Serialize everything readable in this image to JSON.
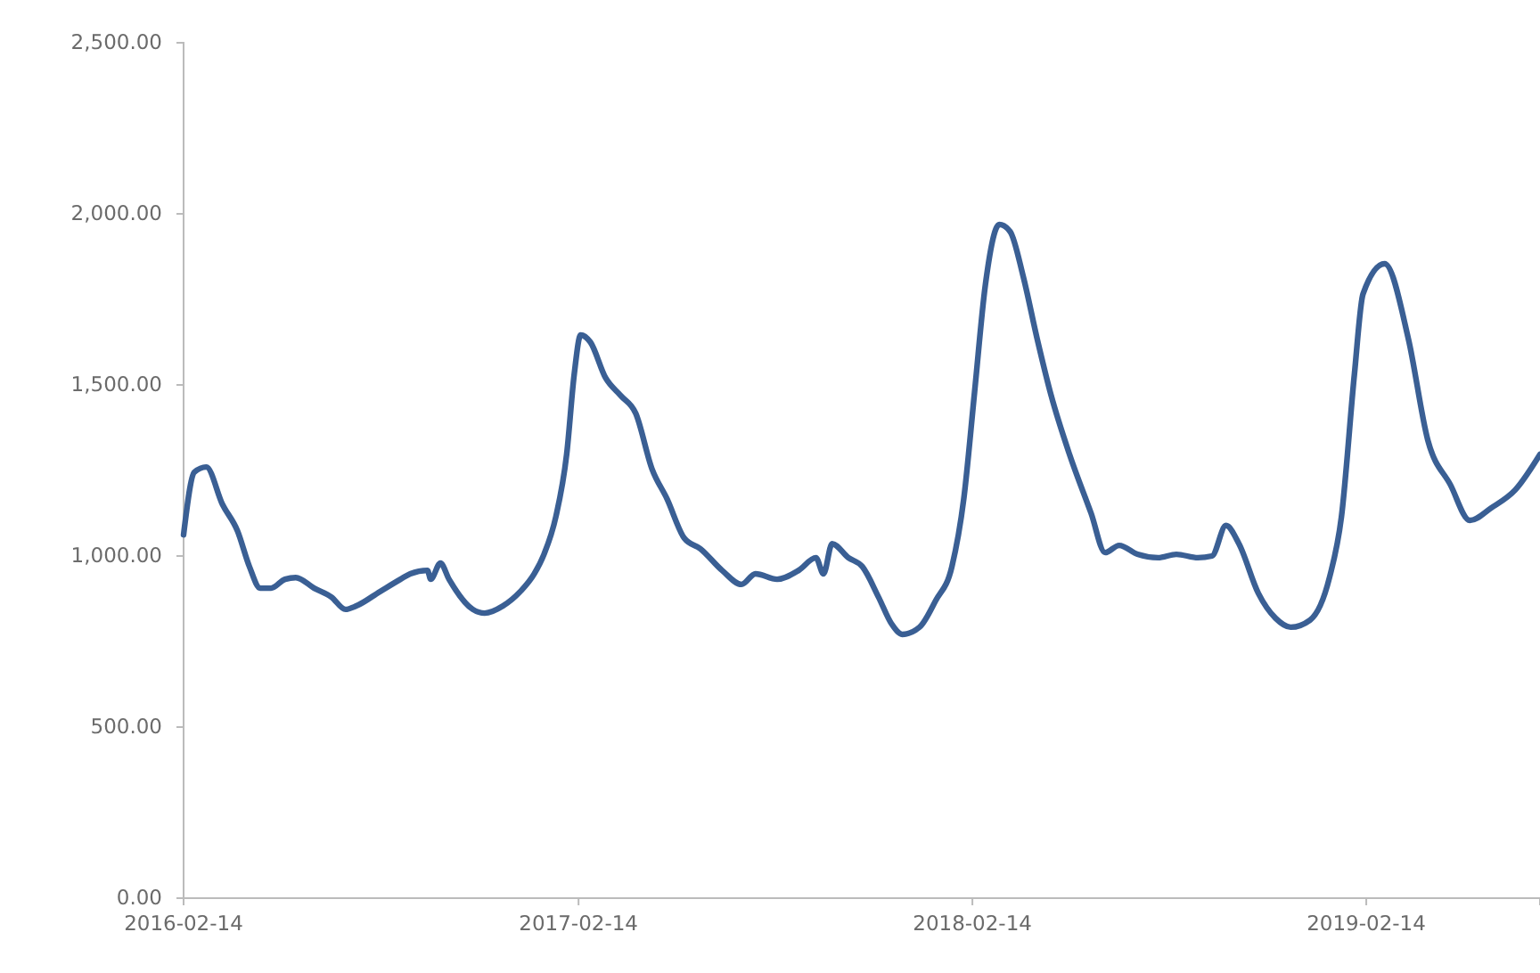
{
  "chart_data": {
    "type": "line",
    "x": [
      "2016-02-14",
      "2016-02-24",
      "2016-03-06",
      "2016-03-21",
      "2016-04-04",
      "2016-04-15",
      "2016-04-25",
      "2016-05-05",
      "2016-05-18",
      "2016-05-28",
      "2016-06-14",
      "2016-06-30",
      "2016-07-13",
      "2016-07-23",
      "2016-08-14",
      "2016-09-02",
      "2016-09-11",
      "2016-09-27",
      "2016-09-30",
      "2016-10-09",
      "2016-10-17",
      "2016-11-08",
      "2016-11-19",
      "2016-12-06",
      "2016-12-22",
      "2017-01-04",
      "2017-01-13",
      "2017-01-24",
      "2017-02-03",
      "2017-02-10",
      "2017-02-16",
      "2017-02-25",
      "2017-03-11",
      "2017-03-25",
      "2017-04-08",
      "2017-04-23",
      "2017-05-07",
      "2017-05-23",
      "2017-06-07",
      "2017-06-27",
      "2017-07-15",
      "2017-07-28",
      "2017-08-17",
      "2017-09-06",
      "2017-09-22",
      "2017-09-29",
      "2017-10-07",
      "2017-10-22",
      "2017-11-04",
      "2017-11-19",
      "2017-12-01",
      "2017-12-11",
      "2017-12-27",
      "2018-01-11",
      "2018-01-26",
      "2018-02-06",
      "2018-02-16",
      "2018-02-26",
      "2018-03-11",
      "2018-03-21",
      "2018-04-02",
      "2018-04-15",
      "2018-04-28",
      "2018-05-15",
      "2018-06-04",
      "2018-06-17",
      "2018-06-30",
      "2018-07-17",
      "2018-08-05",
      "2018-08-22",
      "2018-09-11",
      "2018-09-24",
      "2018-10-07",
      "2018-10-19",
      "2018-11-06",
      "2018-11-22",
      "2018-12-06",
      "2018-12-24",
      "2019-01-11",
      "2019-01-22",
      "2019-02-03",
      "2019-02-11",
      "2019-03-03",
      "2019-03-25",
      "2019-04-12",
      "2019-05-03",
      "2019-05-21",
      "2019-06-10",
      "2019-07-02",
      "2019-07-25"
    ],
    "series": [
      {
        "color": "#3a5f94",
        "values": [
          1062,
          1245,
          1260,
          1151,
          1073,
          969,
          906,
          906,
          932,
          937,
          906,
          880,
          844,
          854,
          896,
          932,
          948,
          958,
          932,
          979,
          932,
          844,
          833,
          854,
          896,
          948,
          1005,
          1115,
          1297,
          1531,
          1646,
          1625,
          1521,
          1469,
          1417,
          1255,
          1167,
          1052,
          1021,
          958,
          917,
          948,
          932,
          958,
          995,
          948,
          1036,
          995,
          969,
          880,
          802,
          771,
          792,
          870,
          969,
          1167,
          1479,
          1792,
          1969,
          1948,
          1818,
          1635,
          1469,
          1297,
          1125,
          1010,
          1031,
          1005,
          995,
          1005,
          995,
          1000,
          1089,
          1036,
          891,
          818,
          792,
          813,
          938,
          1115,
          1531,
          1766,
          1854,
          1635,
          1339,
          1208,
          1104,
          1141,
          1193,
          1297
        ]
      }
    ],
    "xlim": [
      "2016-02-14",
      "2019-07-25"
    ],
    "xticks": [
      "2016-02-14",
      "2017-02-14",
      "2018-02-14",
      "2019-02-14"
    ],
    "ylim": [
      0,
      2500
    ],
    "yticks": [
      {
        "value": 0,
        "label": "0.00"
      },
      {
        "value": 500,
        "label": "500.00"
      },
      {
        "value": 1000,
        "label": "1,000.00"
      },
      {
        "value": 1500,
        "label": "1,500.00"
      },
      {
        "value": 2000,
        "label": "2,000.00"
      },
      {
        "value": 2500,
        "label": "2,500.00"
      }
    ],
    "grid": false,
    "legend": false,
    "marker": "none",
    "line_style": "solid"
  }
}
